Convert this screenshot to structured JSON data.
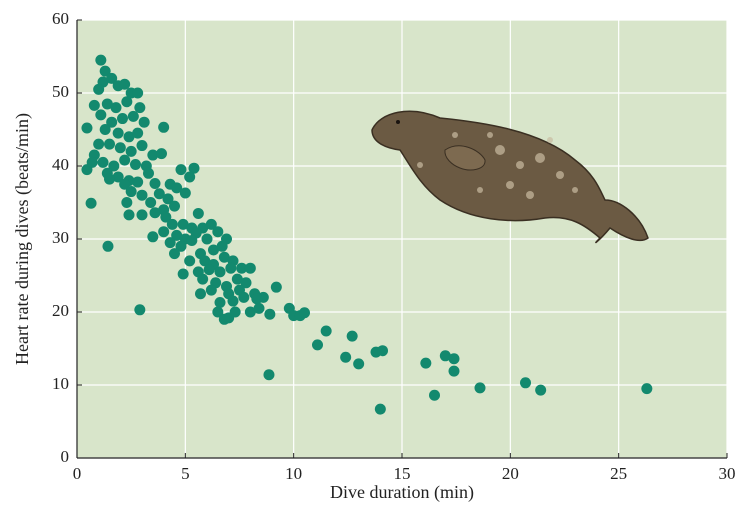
{
  "chart_data": {
    "type": "scatter",
    "x_label": "Dive duration (min)",
    "y_label": "Heart rate during dives (beats/min)",
    "xlim": [
      0,
      30
    ],
    "ylim": [
      0,
      60
    ],
    "xticks": [
      0,
      5,
      10,
      15,
      20,
      25,
      30
    ],
    "yticks": [
      0,
      10,
      20,
      30,
      40,
      50,
      60
    ],
    "grid": true,
    "color": "#13896e",
    "x": [
      0.46,
      0.46,
      0.65,
      1.43,
      2.9,
      8.86,
      9.2,
      9.8,
      10.0,
      10.3,
      10.5,
      11.1,
      11.5,
      12.4,
      12.7,
      13.0,
      13.8,
      14.1,
      14.0,
      16.1,
      16.5,
      17.0,
      17.4,
      17.4,
      18.6,
      20.7,
      21.4,
      26.3,
      8.9,
      1.1,
      1.3,
      1.2,
      1.6,
      1.9,
      2.2,
      2.5,
      2.8,
      1.0,
      0.8,
      1.4,
      1.8,
      2.3,
      2.9,
      1.1,
      1.6,
      2.1,
      2.6,
      3.1,
      4.0,
      1.3,
      1.9,
      2.4,
      2.8,
      1.0,
      1.5,
      2.0,
      2.5,
      3.0,
      3.5,
      3.9,
      0.8,
      1.2,
      1.7,
      2.2,
      2.7,
      3.2,
      0.7,
      1.4,
      1.9,
      2.4,
      3.3,
      4.8,
      5.4,
      1.5,
      2.2,
      2.8,
      3.6,
      4.3,
      4.6,
      5.2,
      2.5,
      3.0,
      3.8,
      4.2,
      5.0,
      2.3,
      3.4,
      4.0,
      4.5,
      2.4,
      3.0,
      3.6,
      4.1,
      5.6,
      4.4,
      4.9,
      5.3,
      5.8,
      6.2,
      3.5,
      4.0,
      4.6,
      5.0,
      5.5,
      6.0,
      6.5,
      6.9,
      4.3,
      4.8,
      5.3,
      5.7,
      6.3,
      6.7,
      4.5,
      5.2,
      5.9,
      6.3,
      6.8,
      7.2,
      4.9,
      5.6,
      6.1,
      6.6,
      7.1,
      7.6,
      8.0,
      5.8,
      6.4,
      6.9,
      7.4,
      7.8,
      5.7,
      6.2,
      7.0,
      7.5,
      8.2,
      8.6,
      6.6,
      7.2,
      7.7,
      8.3,
      6.5,
      7.0,
      7.3,
      8.0,
      8.4,
      6.8
    ],
    "values": [
      45.2,
      39.5,
      34.9,
      29.0,
      20.3,
      11.4,
      23.4,
      20.5,
      19.5,
      19.5,
      19.9,
      15.5,
      17.4,
      13.8,
      16.7,
      12.9,
      14.5,
      14.7,
      6.7,
      13.0,
      8.6,
      14.0,
      13.6,
      11.9,
      9.6,
      10.3,
      9.3,
      9.5,
      19.7,
      54.5,
      53,
      51.5,
      52,
      51,
      51.2,
      50,
      50,
      50.5,
      48.3,
      48.5,
      48,
      48.8,
      48,
      47,
      46,
      46.5,
      46.8,
      46,
      45.3,
      45,
      44.5,
      44,
      44.5,
      43,
      43,
      42.5,
      42,
      42.8,
      41.5,
      41.7,
      41.5,
      40.5,
      40,
      40.8,
      40.2,
      40,
      40.5,
      39,
      38.5,
      38,
      39,
      39.5,
      39.7,
      38.2,
      37.5,
      37.8,
      37.6,
      37.5,
      37,
      38.5,
      36.5,
      36,
      36.2,
      35.5,
      36.3,
      35,
      35,
      34,
      34.5,
      33.3,
      33.3,
      33.6,
      33,
      33.5,
      32,
      32,
      31.5,
      31.5,
      32,
      30.3,
      31,
      30.5,
      30,
      30.8,
      30,
      31,
      30,
      29.5,
      29,
      29.8,
      28,
      28.5,
      29,
      28,
      27,
      27,
      26.5,
      27.5,
      27,
      25.2,
      25.5,
      25.8,
      25.5,
      26,
      26,
      26,
      24.5,
      24,
      23.5,
      24.5,
      24,
      22.5,
      23,
      22.5,
      23,
      22.5,
      22,
      21.3,
      21.5,
      22,
      21.8,
      20,
      19.2,
      20,
      20,
      20.5,
      19.0
    ]
  }
}
